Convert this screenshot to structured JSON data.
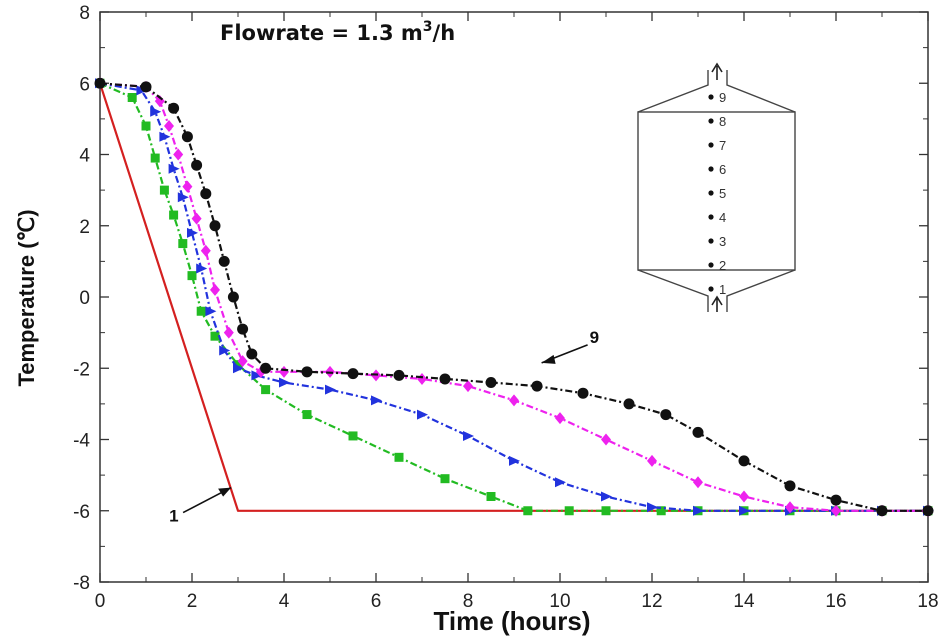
{
  "chart_data": {
    "type": "line",
    "title_prefix": "Flowrate = 1.3 m",
    "title_sup": "3",
    "title_suffix": "/h",
    "xlabel": "Time (hours)",
    "ylabel": "Temperature (℃)",
    "xlim": [
      0,
      18
    ],
    "ylim": [
      -8,
      8
    ],
    "x_ticks": [
      "0",
      "2",
      "4",
      "6",
      "8",
      "10",
      "12",
      "14",
      "16",
      "18"
    ],
    "y_ticks": [
      "8",
      "6",
      "4",
      "2",
      "0",
      "-2",
      "-4",
      "-6",
      "-8"
    ],
    "grid": false,
    "series": [
      {
        "color": "#d42020",
        "marker": "none",
        "dash": "solid",
        "x": [
          0,
          3,
          18
        ],
        "y": [
          6,
          -6,
          -6
        ]
      },
      {
        "color": "#22bb22",
        "marker": "square",
        "dash": "dashdot",
        "x": [
          0,
          0.7,
          1.0,
          1.2,
          1.4,
          1.6,
          1.8,
          2.0,
          2.2,
          2.5,
          3.0,
          3.6,
          4.5,
          5.5,
          6.5,
          7.5,
          8.5,
          9.3,
          10.2,
          11.0,
          12.2,
          13.0,
          14.0,
          15.0,
          16.0,
          17.0,
          18.0
        ],
        "y": [
          6,
          5.6,
          4.8,
          3.9,
          3.0,
          2.3,
          1.5,
          0.6,
          -0.4,
          -1.1,
          -1.9,
          -2.6,
          -3.3,
          -3.9,
          -4.5,
          -5.1,
          -5.6,
          -6.0,
          -6.0,
          -6.0,
          -6.0,
          -6.0,
          -6.0,
          -6.0,
          -6.0,
          -6.0,
          -6.0
        ]
      },
      {
        "color": "#2233dd",
        "marker": "triangle",
        "dash": "dashdot",
        "x": [
          0,
          0.9,
          1.2,
          1.4,
          1.6,
          1.8,
          2.0,
          2.2,
          2.4,
          2.7,
          3.0,
          3.4,
          4.0,
          5.0,
          6.0,
          7.0,
          8.0,
          9.0,
          10.0,
          11.0,
          12.0,
          13.0,
          14.0,
          15.0,
          16.0,
          17.0,
          18.0
        ],
        "y": [
          6,
          5.8,
          5.2,
          4.5,
          3.6,
          2.8,
          1.8,
          0.8,
          -0.4,
          -1.5,
          -2.0,
          -2.2,
          -2.4,
          -2.6,
          -2.9,
          -3.3,
          -3.9,
          -4.6,
          -5.2,
          -5.6,
          -5.9,
          -6.0,
          -6.0,
          -6.0,
          -6.0,
          -6.0,
          -6.0
        ]
      },
      {
        "color": "#ee22ee",
        "marker": "diamond",
        "dash": "dashdot",
        "x": [
          0,
          1.0,
          1.3,
          1.5,
          1.7,
          1.9,
          2.1,
          2.3,
          2.5,
          2.8,
          3.1,
          3.5,
          4.0,
          5.0,
          6.0,
          7.0,
          8.0,
          9.0,
          10.0,
          11.0,
          12.0,
          13.0,
          14.0,
          15.0,
          16.0,
          17.0,
          18.0
        ],
        "y": [
          6,
          5.9,
          5.5,
          4.8,
          4.0,
          3.1,
          2.2,
          1.3,
          0.2,
          -1.0,
          -1.8,
          -2.1,
          -2.1,
          -2.1,
          -2.2,
          -2.3,
          -2.5,
          -2.9,
          -3.4,
          -4.0,
          -4.6,
          -5.2,
          -5.6,
          -5.9,
          -6.0,
          -6.0,
          -6.0
        ]
      },
      {
        "color": "#111111",
        "marker": "circle",
        "dash": "dashdot",
        "x": [
          0,
          1.0,
          1.6,
          1.9,
          2.1,
          2.3,
          2.5,
          2.7,
          2.9,
          3.1,
          3.3,
          3.6,
          4.5,
          5.5,
          6.5,
          7.5,
          8.5,
          9.5,
          10.5,
          11.5,
          12.3,
          13.0,
          14.0,
          15.0,
          16.0,
          17.0,
          18.0
        ],
        "y": [
          6,
          5.9,
          5.3,
          4.5,
          3.7,
          2.9,
          2.0,
          1.0,
          0.0,
          -0.9,
          -1.6,
          -2.0,
          -2.1,
          -2.15,
          -2.2,
          -2.3,
          -2.4,
          -2.5,
          -2.7,
          -3.0,
          -3.3,
          -3.8,
          -4.6,
          -5.3,
          -5.7,
          -6.0,
          -6.0
        ]
      }
    ],
    "annotations": [
      {
        "text": "1",
        "x": 2.85,
        "y": -5.35
      },
      {
        "text": "9",
        "x": 9.6,
        "y": -1.85
      }
    ],
    "inset_labels": [
      "9",
      "8",
      "7",
      "6",
      "5",
      "4",
      "3",
      "2",
      "1"
    ]
  }
}
